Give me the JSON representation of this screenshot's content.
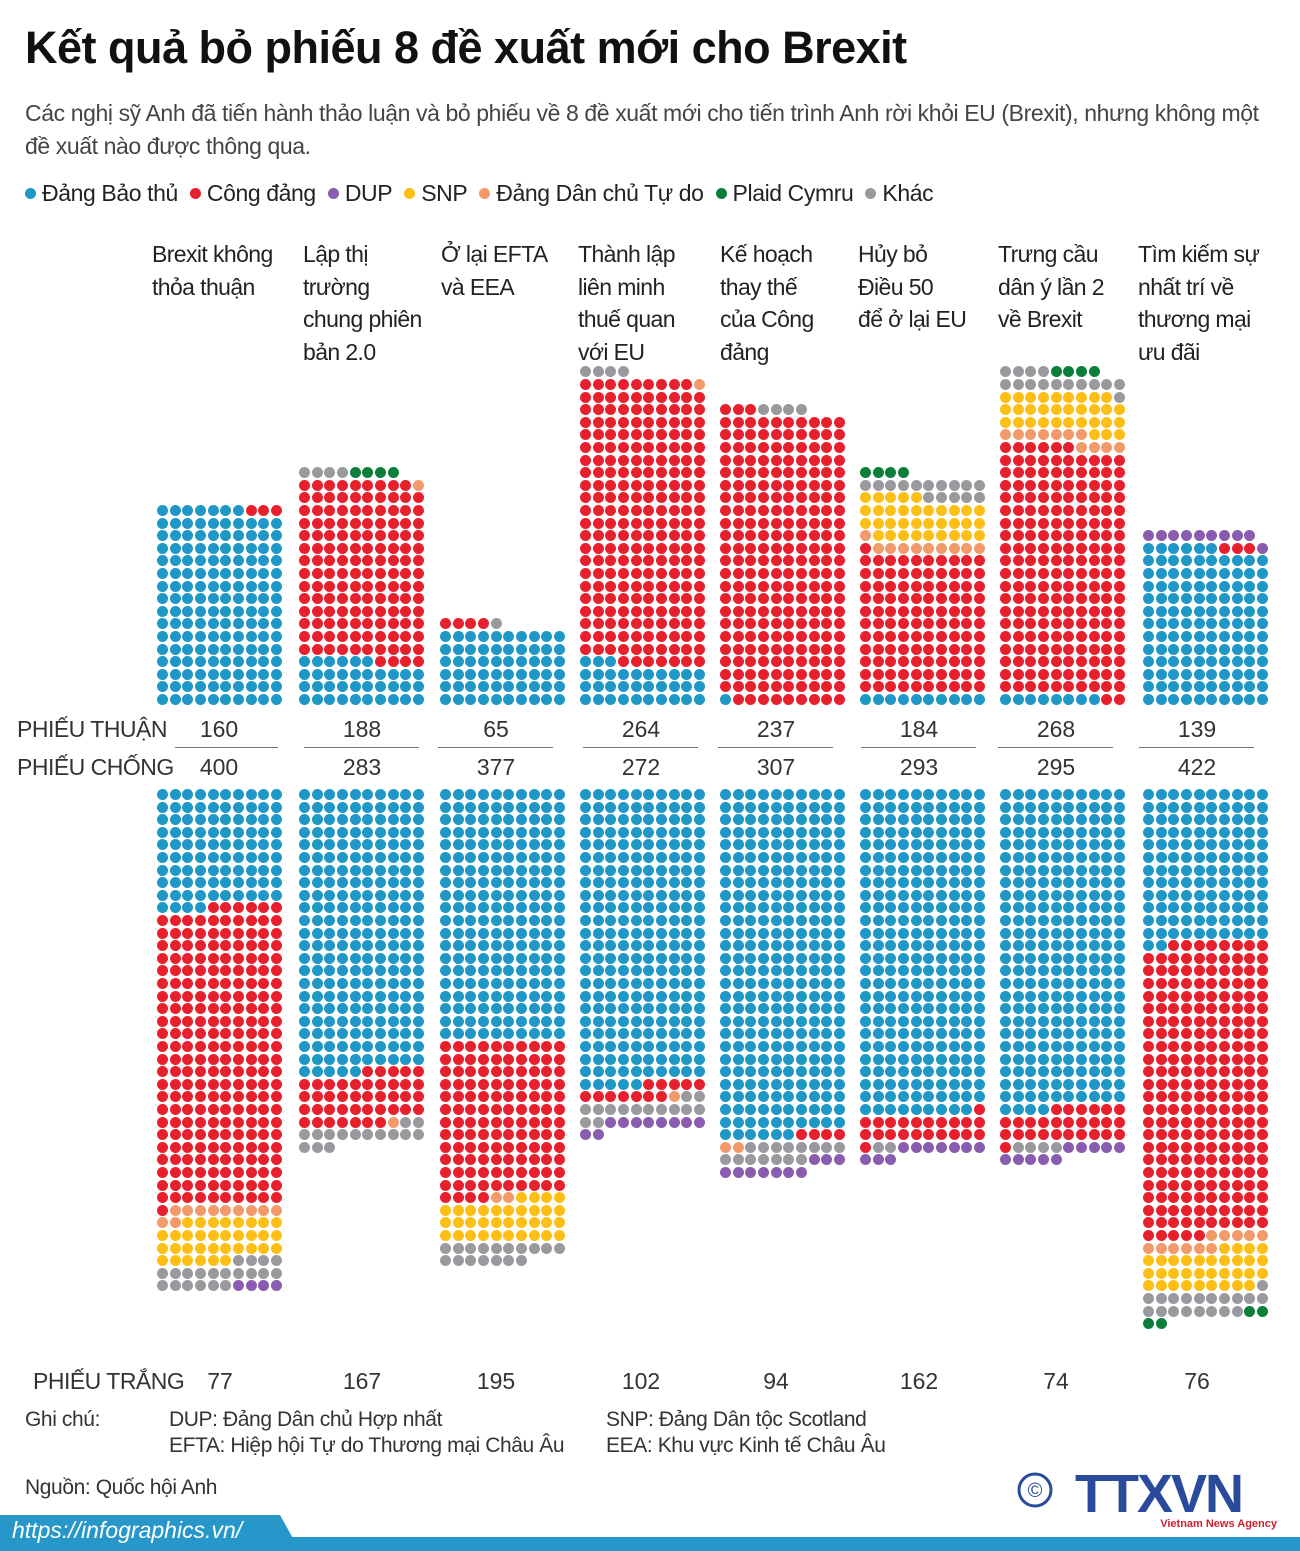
{
  "title": "Kết quả bỏ phiếu 8 đề xuất mới cho Brexit",
  "subtitle": "Các nghị sỹ Anh đã tiến hành thảo luận và bỏ phiếu về 8 đề xuất mới cho tiến trình Anh rời khỏi EU (Brexit), nhưng không một đề xuất nào được thông qua.",
  "legend": [
    {
      "key": "con",
      "label": "Đảng Bảo thủ",
      "color": "#1f98c8"
    },
    {
      "key": "lab",
      "label": "Công đảng",
      "color": "#e8202e"
    },
    {
      "key": "dup",
      "label": "DUP",
      "color": "#8a5cb0"
    },
    {
      "key": "snp",
      "label": "SNP",
      "color": "#fdbf15"
    },
    {
      "key": "ld",
      "label": "Đảng Dân chủ Tự do",
      "color": "#f39a6b"
    },
    {
      "key": "pc",
      "label": "Plaid Cymru",
      "color": "#0b7f3a"
    },
    {
      "key": "oth",
      "label": "Khác",
      "color": "#9a9a9e"
    }
  ],
  "chart_data": {
    "type": "dot-matrix",
    "unit": "1 chấm = 1 phiếu",
    "row_labels": {
      "for": "PHIẾU THUẬN",
      "against": "PHIẾU CHỐNG",
      "abstain": "PHIẾU TRẮNG"
    },
    "categories": [
      [
        "Brexit không",
        "thỏa thuận"
      ],
      [
        "Lập thị",
        "trường",
        "chung phiên",
        "bản 2.0"
      ],
      [
        "Ở lại EFTA",
        "và EEA"
      ],
      [
        "Thành lập",
        "liên minh",
        "thuế quan",
        "với EU"
      ],
      [
        "Kế hoạch",
        "thay thế",
        "của Công",
        "đảng"
      ],
      [
        "Hủy bỏ",
        "Điều 50",
        "để ở lại EU"
      ],
      [
        "Trưng cầu",
        "dân ý lần 2",
        "về Brexit"
      ],
      [
        "Tìm kiếm sự",
        "nhất trí về",
        "thương mại",
        "ưu đãi"
      ]
    ],
    "for_totals": [
      "160",
      "188",
      "65",
      "264",
      "237",
      "184",
      "268",
      "139"
    ],
    "against_totals": [
      "400",
      "283",
      "377",
      "272",
      "307",
      "293",
      "295",
      "422"
    ],
    "abstain_totals": [
      "77",
      "167",
      "195",
      "102",
      "94",
      "162",
      "74",
      "76"
    ],
    "for_by_party": [
      {
        "con": 157,
        "lab": 3
      },
      {
        "con": 36,
        "lab": 143,
        "ld": 1,
        "oth": 4,
        "pc": 4
      },
      {
        "con": 60,
        "lab": 4,
        "oth": 1
      },
      {
        "con": 33,
        "lab": 226,
        "ld": 1,
        "oth": 4
      },
      {
        "con": 1,
        "lab": 232,
        "oth": 4
      },
      {
        "con": 10,
        "lab": 111,
        "ld": 10,
        "snp": 34,
        "oth": 15,
        "pc": 4
      },
      {
        "con": 8,
        "lab": 198,
        "ld": 11,
        "snp": 32,
        "oth": 15,
        "pc": 4
      },
      {
        "con": 126,
        "lab": 3,
        "dup": 10
      }
    ],
    "against_by_party": [
      {
        "con": 94,
        "lab": 237,
        "ld": 11,
        "snp": 34,
        "oth": 20,
        "dup": 4
      },
      {
        "con": 225,
        "lab": 42,
        "ld": 1,
        "oth": 15
      },
      {
        "con": 200,
        "lab": 124,
        "ld": 2,
        "snp": 34,
        "oth": 17
      },
      {
        "con": 235,
        "lab": 12,
        "ld": 1,
        "oth": 14,
        "dup": 10
      },
      {
        "con": 276,
        "lab": 4,
        "ld": 2,
        "oth": 15,
        "dup": 10
      },
      {
        "con": 259,
        "lab": 22,
        "oth": 2,
        "dup": 10
      },
      {
        "con": 254,
        "lab": 27,
        "oth": 4,
        "dup": 10
      },
      {
        "con": 122,
        "lab": 233,
        "ld": 11,
        "snp": 33,
        "oth": 19,
        "pc": 4
      }
    ]
  },
  "notes": {
    "label": "Ghi chú:",
    "dup": "DUP: Đảng Dân chủ Hợp nhất",
    "snp": "SNP: Đảng Dân tộc Scotland",
    "efta": "EFTA: Hiệp hội Tự do Thương mại Châu Âu",
    "eea": "EEA: Khu vực Kinh tế Châu Âu"
  },
  "source": "Nguồn: Quốc hội Anh",
  "url": "https://infographics.vn/",
  "logo": {
    "text": "TTXVN",
    "tagline": "Vietnam News Agency",
    "copyright": "©"
  }
}
